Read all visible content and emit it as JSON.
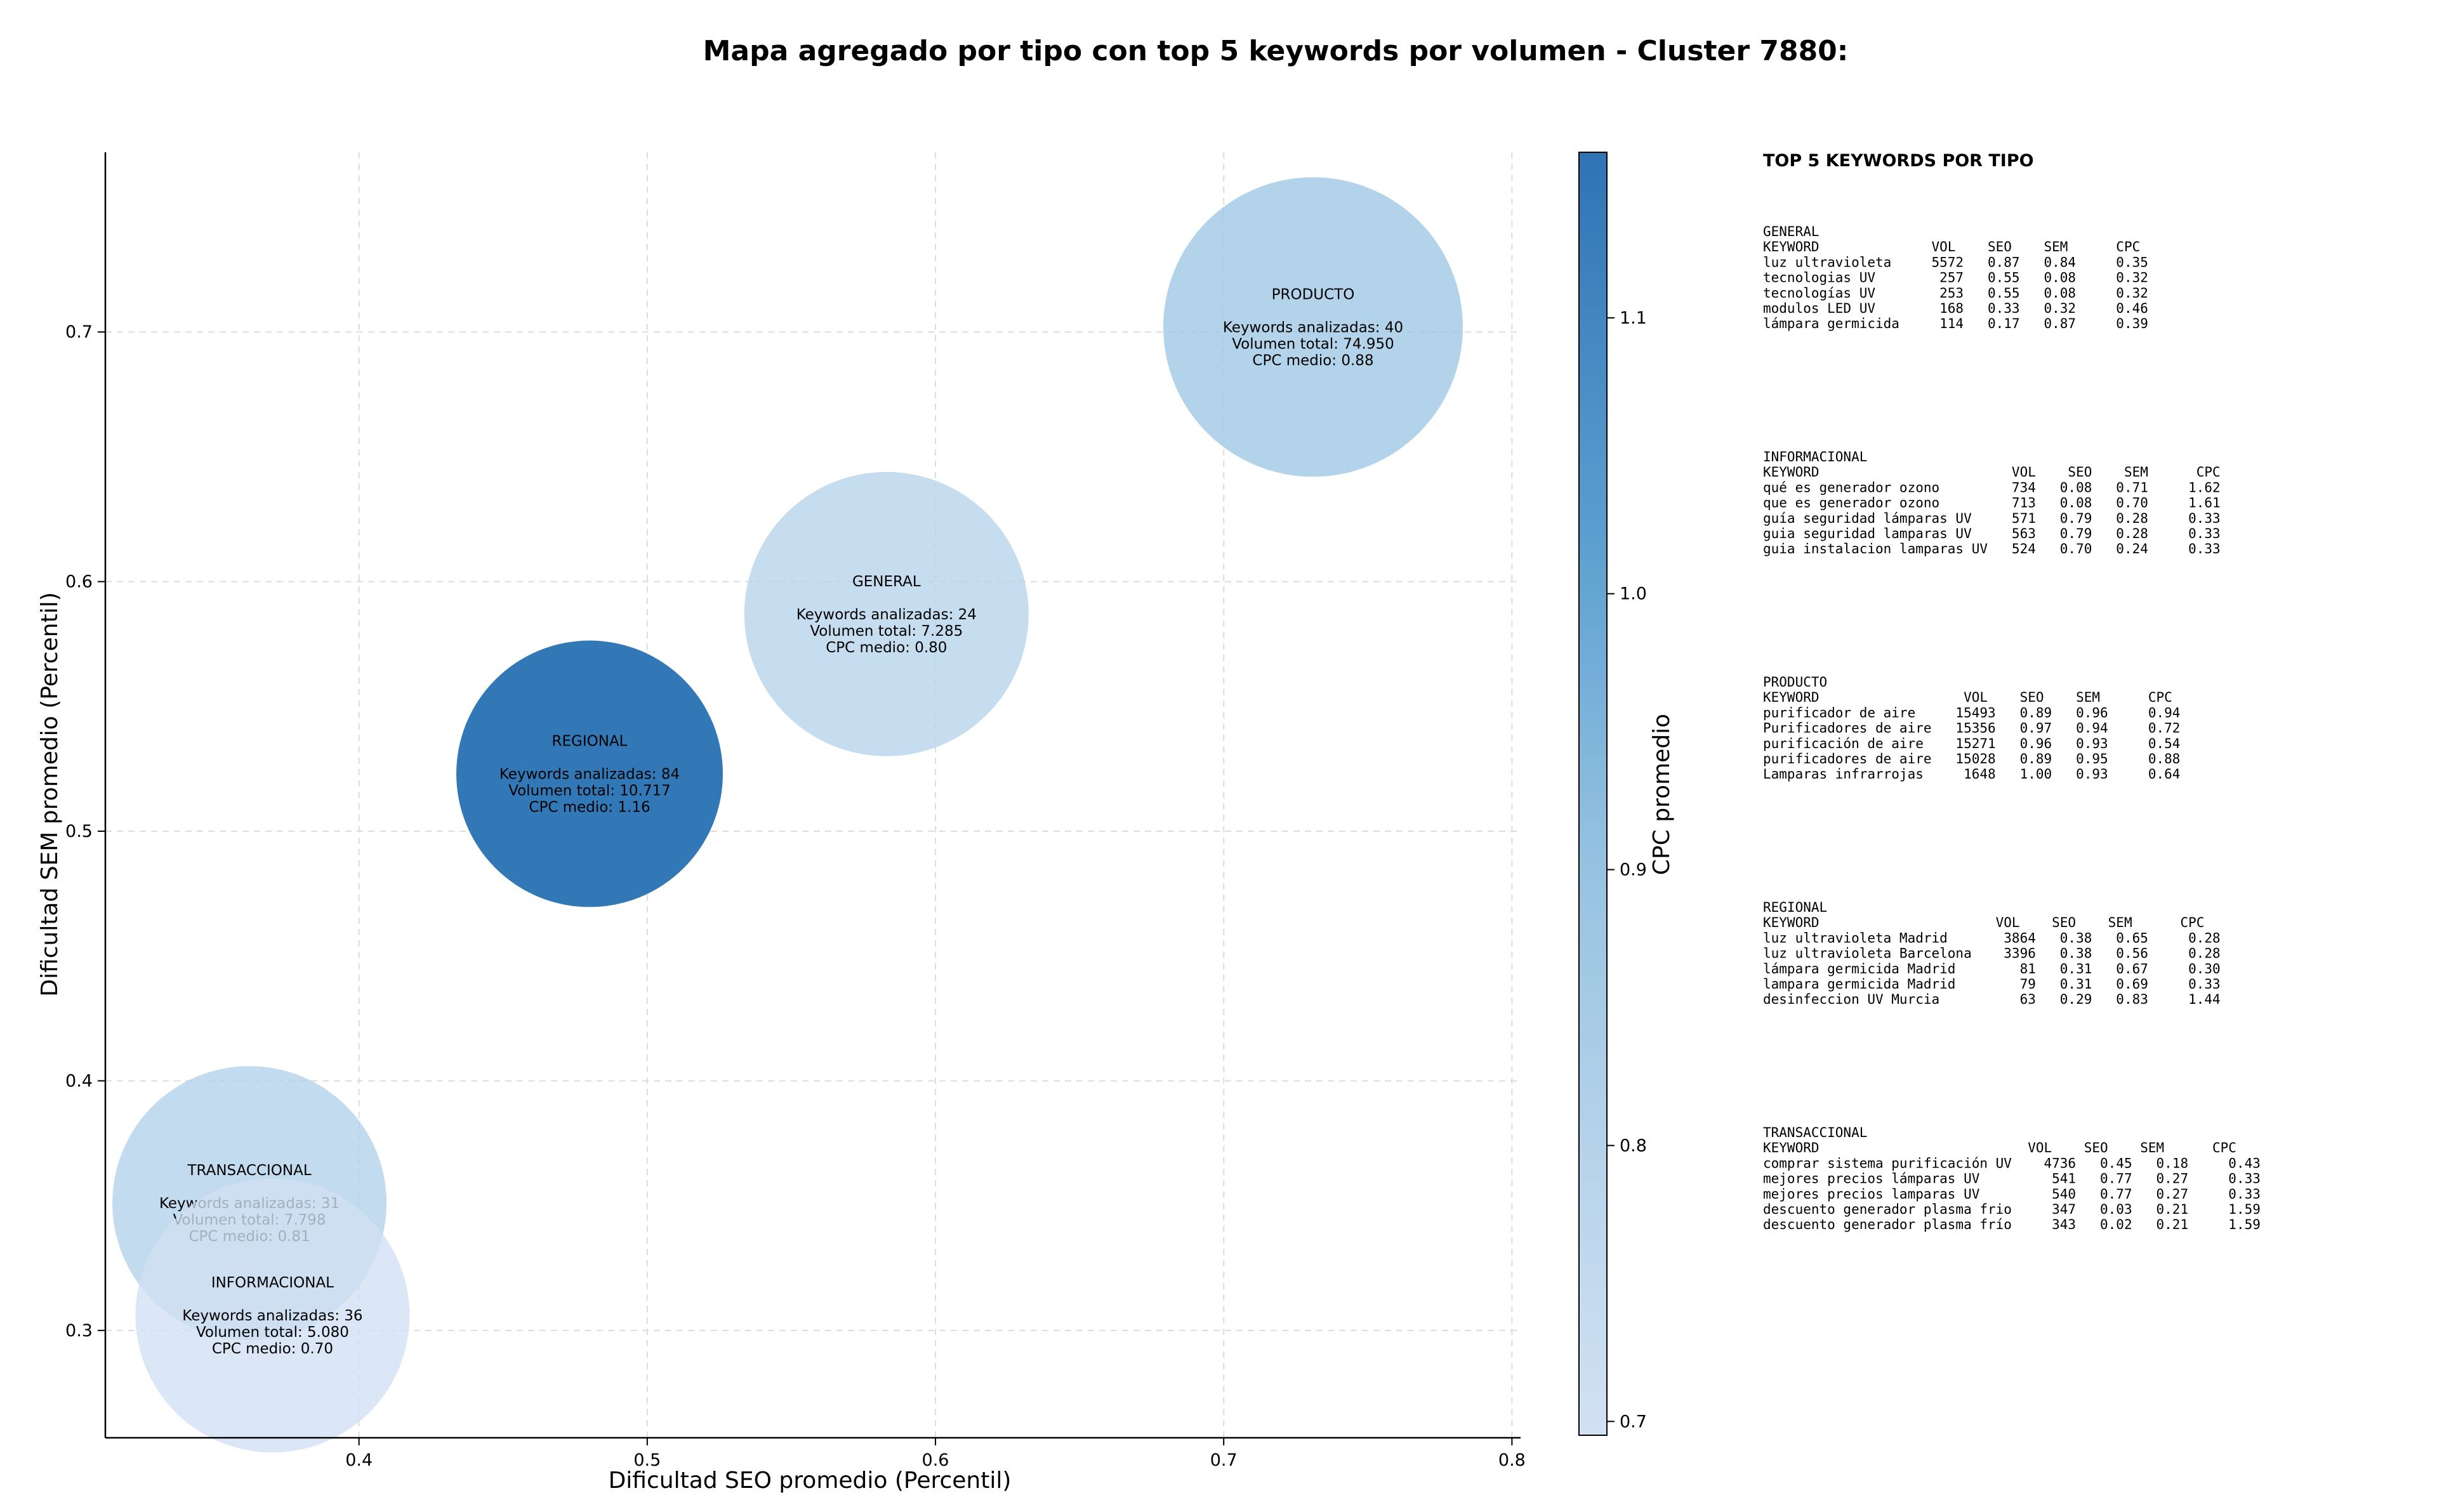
{
  "chart_data": {
    "type": "scatter",
    "subtype": "bubble",
    "title": "Mapa agregado por tipo con top 5 keywords por volumen - Cluster 7880:",
    "xlabel": "Dificultad SEO promedio (Percentil)",
    "ylabel": "Dificultad SEM promedio (Percentil)",
    "xlim": [
      0.312,
      0.803
    ],
    "ylim": [
      0.257,
      0.772
    ],
    "xticks": [
      0.4,
      0.5,
      0.6,
      0.7,
      0.8
    ],
    "xtick_labels": [
      "0.4",
      "0.5",
      "0.6",
      "0.7",
      "0.8"
    ],
    "yticks": [
      0.3,
      0.4,
      0.5,
      0.6,
      0.7
    ],
    "ytick_labels": [
      "0.3",
      "0.4",
      "0.5",
      "0.6",
      "0.7"
    ],
    "grid": true,
    "colorbar": {
      "label": "CPC promedio",
      "range": [
        0.695,
        1.16
      ],
      "ticks": [
        0.7,
        0.8,
        0.9,
        1.0,
        1.1
      ],
      "tick_labels": [
        "0.7",
        "0.8",
        "0.9",
        "1.0",
        "1.1"
      ],
      "colormap": "Blues",
      "color_low": "#c6d9ef",
      "color_high": "#2e74b5"
    },
    "bubbles": [
      {
        "name": "PRODUCTO",
        "x": 0.731,
        "y": 0.702,
        "cpc": 0.88,
        "text_lines": [
          "PRODUCTO",
          "",
          "Keywords analizadas: 40",
          "Volumen total: 74.950",
          "CPC medio: 0.88"
        ]
      },
      {
        "name": "GENERAL",
        "x": 0.583,
        "y": 0.587,
        "cpc": 0.8,
        "text_lines": [
          "GENERAL",
          "",
          "Keywords analizadas: 24",
          "Volumen total: 7.285",
          "CPC medio: 0.80"
        ]
      },
      {
        "name": "REGIONAL",
        "x": 0.48,
        "y": 0.523,
        "cpc": 1.16,
        "text_lines": [
          "REGIONAL",
          "",
          "Keywords analizadas: 84",
          "Volumen total: 10.717",
          "CPC medio: 1.16"
        ]
      },
      {
        "name": "TRANSACCIONAL",
        "x": 0.362,
        "y": 0.351,
        "cpc": 0.81,
        "text_lines": [
          "TRANSACCIONAL",
          "",
          "Keywords analizadas: 31",
          "Volumen total: 7.798",
          "CPC medio: 0.81"
        ]
      },
      {
        "name": "INFORMACIONAL",
        "x": 0.37,
        "y": 0.306,
        "cpc": 0.7,
        "text_lines": [
          "INFORMACIONAL",
          "",
          "Keywords analizadas: 36",
          "Volumen total: 5.080",
          "CPC medio: 0.70"
        ]
      }
    ]
  },
  "side_panel": {
    "title": "TOP 5 KEYWORDS POR TIPO",
    "blocks": [
      {
        "lines": [
          "GENERAL",
          "KEYWORD              VOL    SEO    SEM      CPC",
          "luz ultravioleta     5572   0.87   0.84     0.35",
          "tecnologias UV        257   0.55   0.08     0.32",
          "tecnologías UV        253   0.55   0.08     0.32",
          "modulos LED UV        168   0.33   0.32     0.46",
          "lámpara germicida     114   0.17   0.87     0.39"
        ]
      },
      {
        "lines": [
          "INFORMACIONAL",
          "KEYWORD                        VOL    SEO    SEM      CPC",
          "qué es generador ozono         734   0.08   0.71     1.62",
          "que es generador ozono         713   0.08   0.70     1.61",
          "guía seguridad lámparas UV     571   0.79   0.28     0.33",
          "guia seguridad lamparas UV     563   0.79   0.28     0.33",
          "guia instalacion lamparas UV   524   0.70   0.24     0.33"
        ]
      },
      {
        "lines": [
          "PRODUCTO",
          "KEYWORD                  VOL    SEO    SEM      CPC",
          "purificador de aire     15493   0.89   0.96     0.94",
          "Purificadores de aire   15356   0.97   0.94     0.72",
          "purificación de aire    15271   0.96   0.93     0.54",
          "purificadores de aire   15028   0.89   0.95     0.88",
          "Lamparas infrarrojas     1648   1.00   0.93     0.64"
        ]
      },
      {
        "lines": [
          "REGIONAL",
          "KEYWORD                      VOL    SEO    SEM      CPC",
          "luz ultravioleta Madrid       3864   0.38   0.65     0.28",
          "luz ultravioleta Barcelona    3396   0.38   0.56     0.28",
          "lámpara germicida Madrid        81   0.31   0.67     0.30",
          "lampara germicida Madrid        79   0.31   0.69     0.33",
          "desinfeccion UV Murcia          63   0.29   0.83     1.44"
        ]
      },
      {
        "lines": [
          "TRANSACCIONAL",
          "KEYWORD                          VOL    SEO    SEM      CPC",
          "comprar sistema purificación UV    4736   0.45   0.18     0.43",
          "mejores precios lámparas UV         541   0.77   0.27     0.33",
          "mejores precios lamparas UV         540   0.77   0.27     0.33",
          "descuento generador plasma frio     347   0.03   0.21     1.59",
          "descuento generador plasma frío     343   0.02   0.21     1.59"
        ]
      }
    ]
  }
}
